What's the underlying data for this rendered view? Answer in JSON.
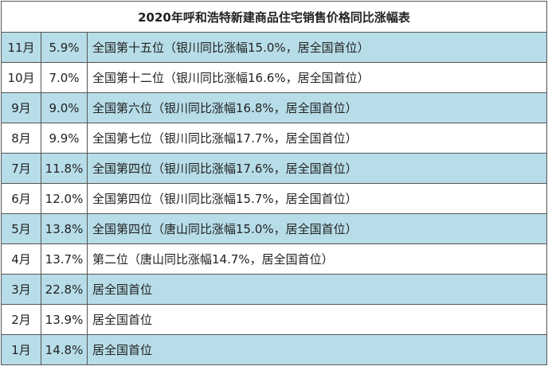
{
  "table": {
    "title": "2020年呼和浩特新建商品住宅销售价格同比涨幅表",
    "rows": [
      [
        "11月",
        "5.9%",
        "全国第十五位（银川同比涨幅15.0%，居全国首位）"
      ],
      [
        "10月",
        "7.0%",
        "全国第十二位（银川同比涨幅16.6%，居全国首位）"
      ],
      [
        "9月",
        "9.0%",
        "全国第六位（银川同比涨幅16.8%，居全国首位）"
      ],
      [
        "8月",
        "9.9%",
        "全国第七位（银川同比涨幅17.7%，居全国首位）"
      ],
      [
        "7月",
        "11.8%",
        "全国第四位（银川同比涨幅17.6%，居全国首位）"
      ],
      [
        "6月",
        "12.0%",
        "全国第四位（银川同比涨幅15.7%，居全国首位）"
      ],
      [
        "5月",
        "13.8%",
        "全国第四位（唐山同比涨幅15.0%，居全国首位）"
      ],
      [
        "4月",
        "13.7%",
        "第二位（唐山同比涨幅14.7%，居全国首位）"
      ],
      [
        "3月",
        "22.8%",
        "居全国首位"
      ],
      [
        "2月",
        "13.9%",
        "居全国首位"
      ],
      [
        "1月",
        "14.8%",
        "居全国首位"
      ]
    ]
  }
}
